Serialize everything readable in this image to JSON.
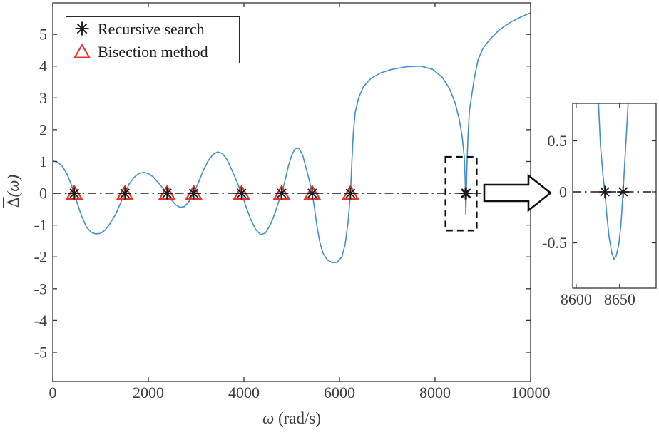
{
  "figure": {
    "bg": "#ffffff",
    "axis_color": "#333333",
    "tick_label_color": "#3d3d3d",
    "curve_color": "#3f90cb",
    "zero_line_color": "#1a1a1a",
    "marker_red": "#e4352b",
    "marker_black": "#1a1a1a",
    "annotation_color": "#111111"
  },
  "legend": {
    "items": [
      {
        "marker": "asterisk",
        "label": "Recursive search"
      },
      {
        "marker": "triangle",
        "label": "Bisection method"
      }
    ]
  },
  "labels": {
    "xlabel": {
      "omega": "ω",
      "units": "(rad/s)"
    },
    "ylabel": {
      "delta": "Δ",
      "rest": "(ω)"
    }
  },
  "chart_data": [
    {
      "id": "main",
      "type": "line",
      "title": "",
      "xlabel": "ω (rad/s)",
      "ylabel": "Δ̄(ω)",
      "xlim": [
        0,
        10000
      ],
      "ylim": [
        -5.92,
        5.99
      ],
      "xticks": [
        0,
        2000,
        4000,
        6000,
        8000,
        10000
      ],
      "yticks": [
        -5,
        -4,
        -3,
        -2,
        -1,
        0,
        1,
        2,
        3,
        4,
        5
      ],
      "grid": false,
      "zero_line_style": "dash-dot",
      "legend_position": "top-left",
      "series": [
        {
          "name": "frequency-determinant-curve",
          "type": "curve",
          "points": [
            [
              0,
              1.02
            ],
            [
              100,
              0.98
            ],
            [
              200,
              0.85
            ],
            [
              300,
              0.6
            ],
            [
              380,
              0.3
            ],
            [
              450,
              0
            ],
            [
              520,
              -0.35
            ],
            [
              600,
              -0.7
            ],
            [
              700,
              -1.05
            ],
            [
              800,
              -1.22
            ],
            [
              900,
              -1.28
            ],
            [
              1000,
              -1.26
            ],
            [
              1100,
              -1.15
            ],
            [
              1200,
              -0.95
            ],
            [
              1320,
              -0.65
            ],
            [
              1420,
              -0.3
            ],
            [
              1510,
              0
            ],
            [
              1600,
              0.3
            ],
            [
              1700,
              0.5
            ],
            [
              1800,
              0.62
            ],
            [
              1900,
              0.66
            ],
            [
              2000,
              0.62
            ],
            [
              2100,
              0.52
            ],
            [
              2200,
              0.35
            ],
            [
              2300,
              0.17
            ],
            [
              2390,
              0
            ],
            [
              2480,
              -0.2
            ],
            [
              2570,
              -0.36
            ],
            [
              2660,
              -0.44
            ],
            [
              2750,
              -0.42
            ],
            [
              2840,
              -0.28
            ],
            [
              2950,
              0
            ],
            [
              3050,
              0.35
            ],
            [
              3150,
              0.72
            ],
            [
              3250,
              1.02
            ],
            [
              3350,
              1.22
            ],
            [
              3450,
              1.3
            ],
            [
              3550,
              1.25
            ],
            [
              3650,
              1.05
            ],
            [
              3750,
              0.72
            ],
            [
              3850,
              0.38
            ],
            [
              3950,
              0
            ],
            [
              4050,
              -0.45
            ],
            [
              4150,
              -0.85
            ],
            [
              4250,
              -1.15
            ],
            [
              4350,
              -1.3
            ],
            [
              4450,
              -1.25
            ],
            [
              4550,
              -1.0
            ],
            [
              4650,
              -0.62
            ],
            [
              4720,
              -0.3
            ],
            [
              4790,
              0
            ],
            [
              4860,
              0.4
            ],
            [
              4930,
              0.85
            ],
            [
              5000,
              1.2
            ],
            [
              5070,
              1.4
            ],
            [
              5150,
              1.42
            ],
            [
              5230,
              1.2
            ],
            [
              5300,
              0.8
            ],
            [
              5370,
              0.4
            ],
            [
              5430,
              0
            ],
            [
              5480,
              -0.5
            ],
            [
              5530,
              -1.05
            ],
            [
              5590,
              -1.55
            ],
            [
              5660,
              -1.9
            ],
            [
              5750,
              -2.1
            ],
            [
              5850,
              -2.18
            ],
            [
              5950,
              -2.17
            ],
            [
              6050,
              -2.0
            ],
            [
              6120,
              -1.6
            ],
            [
              6180,
              -0.9
            ],
            [
              6230,
              0
            ],
            [
              6260,
              1.0
            ],
            [
              6290,
              1.9
            ],
            [
              6330,
              2.55
            ],
            [
              6400,
              3.0
            ],
            [
              6500,
              3.35
            ],
            [
              6650,
              3.6
            ],
            [
              6850,
              3.78
            ],
            [
              7100,
              3.9
            ],
            [
              7400,
              3.98
            ],
            [
              7700,
              4.0
            ],
            [
              7950,
              3.9
            ],
            [
              8150,
              3.65
            ],
            [
              8300,
              3.3
            ],
            [
              8420,
              2.85
            ],
            [
              8510,
              2.3
            ],
            [
              8570,
              1.75
            ],
            [
              8610,
              1.15
            ],
            [
              8630,
              0.45
            ],
            [
              8637,
              -0.2
            ],
            [
              8643,
              -0.66
            ],
            [
              8650,
              -0.3
            ],
            [
              8656,
              0.2
            ],
            [
              8668,
              0.9
            ],
            [
              8690,
              1.8
            ],
            [
              8720,
              2.6
            ],
            [
              8760,
              3.0
            ],
            [
              8820,
              3.6
            ],
            [
              8900,
              4.2
            ],
            [
              9000,
              4.55
            ],
            [
              9150,
              4.85
            ],
            [
              9350,
              5.15
            ],
            [
              9600,
              5.4
            ],
            [
              9800,
              5.55
            ],
            [
              10000,
              5.68
            ]
          ]
        },
        {
          "name": "Bisection method",
          "type": "markers",
          "marker": "triangle",
          "points": [
            [
              450,
              0
            ],
            [
              1510,
              0
            ],
            [
              2390,
              0
            ],
            [
              2950,
              0
            ],
            [
              3950,
              0
            ],
            [
              4790,
              0
            ],
            [
              5430,
              0
            ],
            [
              6230,
              0
            ]
          ]
        },
        {
          "name": "Recursive search",
          "type": "markers",
          "marker": "asterisk",
          "points": [
            [
              450,
              0
            ],
            [
              1510,
              0
            ],
            [
              2390,
              0
            ],
            [
              2950,
              0
            ],
            [
              3950,
              0
            ],
            [
              4790,
              0
            ],
            [
              5430,
              0
            ],
            [
              6230,
              0
            ],
            [
              8633,
              0
            ],
            [
              8654,
              0
            ]
          ]
        }
      ],
      "annotations": {
        "dashed_box": {
          "xrange": [
            8220,
            8870
          ],
          "yrange": [
            -1.17,
            1.14
          ]
        },
        "arrow_to_inset": true
      }
    },
    {
      "id": "inset",
      "type": "line",
      "title": "",
      "xlim": [
        8596,
        8692
      ],
      "ylim": [
        -0.944,
        0.867
      ],
      "xticks": [
        8600,
        8650
      ],
      "yticks": [
        -0.5,
        0,
        0.5
      ],
      "grid": false,
      "zero_line_style": "dash-dot",
      "series": [
        {
          "name": "frequency-determinant-curve-zoom",
          "type": "curve",
          "points": [
            [
              8625.5,
              0.9
            ],
            [
              8628,
              0.45
            ],
            [
              8631,
              0.15
            ],
            [
              8633,
              0
            ],
            [
              8635.5,
              -0.25
            ],
            [
              8638,
              -0.45
            ],
            [
              8641,
              -0.6
            ],
            [
              8643.5,
              -0.66
            ],
            [
              8646,
              -0.63
            ],
            [
              8649,
              -0.52
            ],
            [
              8651.5,
              -0.33
            ],
            [
              8654,
              0
            ],
            [
              8656,
              0.3
            ],
            [
              8658,
              0.6
            ],
            [
              8660,
              0.9
            ]
          ]
        },
        {
          "name": "Recursive search",
          "type": "markers",
          "marker": "asterisk",
          "points": [
            [
              8633,
              0
            ],
            [
              8654,
              0
            ]
          ]
        }
      ]
    }
  ]
}
